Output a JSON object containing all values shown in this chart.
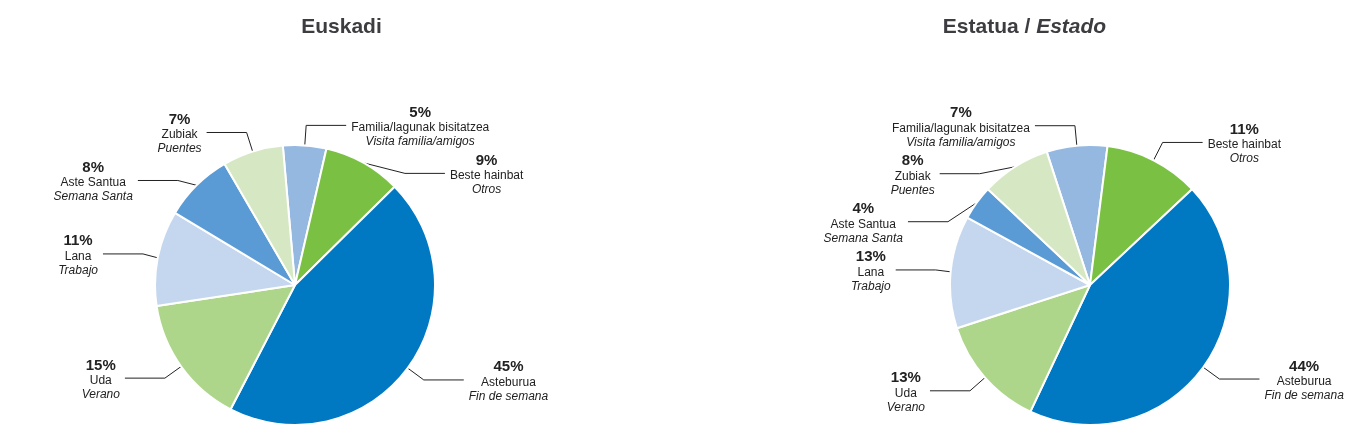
{
  "chart_data": [
    {
      "type": "pie",
      "title": "Euskadi",
      "categories": [
        "Familia/lagunak bisitatzea\nVisita familia/amigos",
        "Beste hainbat\nOtros",
        "Asteburua\nFin de semana",
        "Uda\nVerano",
        "Lana\nTrabajo",
        "Aste Santua\nSemana Santa",
        "Zubiak\nPuentes"
      ],
      "values": [
        5,
        9,
        45,
        15,
        11,
        8,
        7
      ],
      "value_labels": [
        "5%",
        "9%",
        "45%",
        "15%",
        "11%",
        "8%",
        "7%"
      ],
      "colors": [
        "#95b8e0",
        "#7ac143",
        "#0079c2",
        "#aed68b",
        "#c5d7ef",
        "#5b9bd5",
        "#d5e8c3"
      ],
      "legend": false
    },
    {
      "type": "pie",
      "title": "Estatua / Estado",
      "categories": [
        "Familia/lagunak bisitatzea\nVisita familia/amigos",
        "Beste hainbat\nOtros",
        "Asteburua\nFin de semana",
        "Uda\nVerano",
        "Lana\nTrabajo",
        "Aste Santua\nSemana Santa",
        "Zubiak\nPuentes"
      ],
      "values": [
        7,
        11,
        44,
        13,
        13,
        4,
        8
      ],
      "value_labels": [
        "7%",
        "11%",
        "44%",
        "13%",
        "13%",
        "4%",
        "8%"
      ],
      "colors": [
        "#95b8e0",
        "#7ac143",
        "#0079c2",
        "#aed68b",
        "#c5d7ef",
        "#5b9bd5",
        "#d5e8c3"
      ],
      "legend": false
    }
  ]
}
